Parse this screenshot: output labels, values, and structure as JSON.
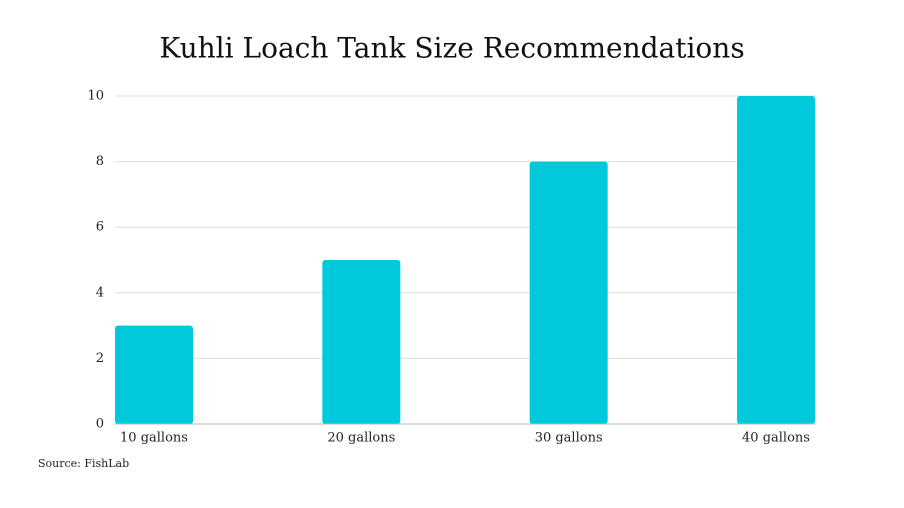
{
  "chart_data": {
    "type": "bar",
    "title": "Kuhli Loach Tank Size Recommendations",
    "categories": [
      "10 gallons",
      "20 gallons",
      "30 gallons",
      "40 gallons"
    ],
    "values": [
      3,
      5,
      8,
      10
    ],
    "color": "#00c9db",
    "ylim": [
      0,
      10
    ],
    "yticks": [
      0,
      2,
      4,
      6,
      8,
      10
    ],
    "grid": true,
    "source": "Source: FishLab"
  }
}
